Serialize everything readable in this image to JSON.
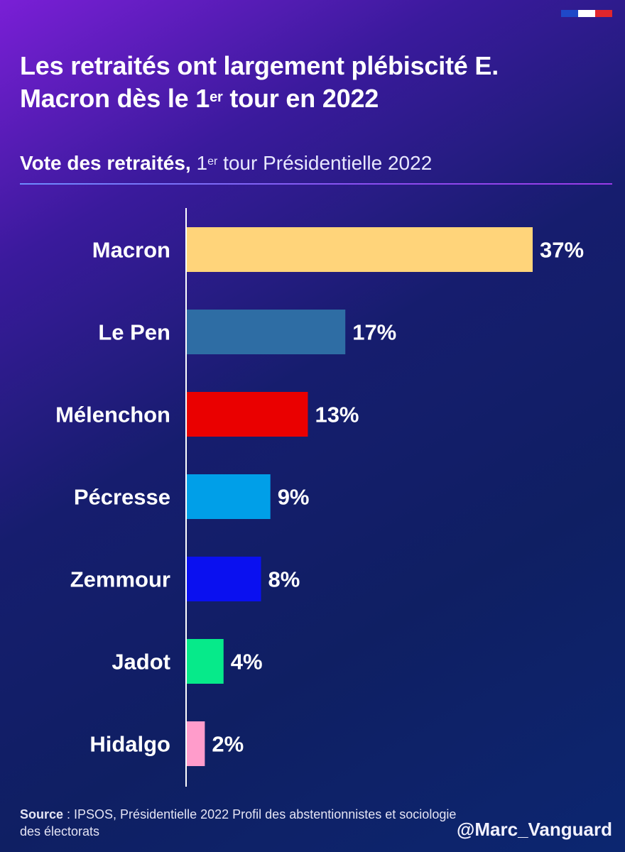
{
  "flag_colors": [
    "#1f48c8",
    "#ffffff",
    "#e1262d"
  ],
  "title": {
    "line1": "Les retraités ont largement plébiscité E.",
    "line2a": "Macron dès le 1",
    "line2sup": "er",
    "line2b": " tour en 2022"
  },
  "subtitle": {
    "bold": "Vote des retraités,",
    "pre": " 1",
    "sup": "er",
    "rest": " tour Présidentielle 2022"
  },
  "chart_data": {
    "type": "bar",
    "orientation": "horizontal",
    "categories": [
      "Macron",
      "Le Pen",
      "Mélenchon",
      "Pécresse",
      "Zemmour",
      "Jadot",
      "Hidalgo"
    ],
    "values": [
      37,
      17,
      13,
      9,
      8,
      4,
      2
    ],
    "labels": [
      "37%",
      "17%",
      "13%",
      "9%",
      "8%",
      "4%",
      "2%"
    ],
    "colors": [
      "#ffd47a",
      "#2e6da4",
      "#ea0000",
      "#009fe8",
      "#0a10f0",
      "#06ea8a",
      "#ff9ccb"
    ],
    "unit": "%",
    "xlim": [
      0,
      37
    ],
    "grid": false
  },
  "footer": {
    "source_label": "Source",
    "source_text": " : IPSOS, Présidentielle 2022 Profil des abstentionnistes et sociologie des électorats",
    "handle": "@Marc_Vanguard"
  }
}
